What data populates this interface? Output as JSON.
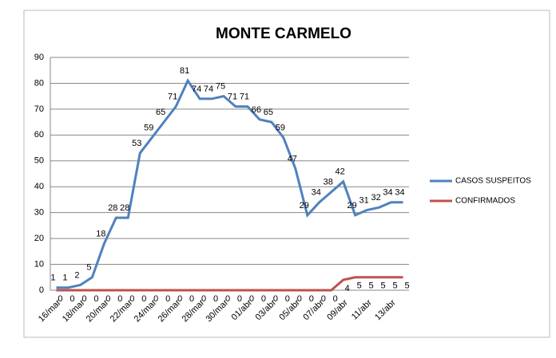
{
  "chart_data": {
    "type": "line",
    "title": "MONTE CARMELO",
    "categories": [
      "16/mar",
      null,
      "18/mar",
      null,
      "20/mar",
      null,
      "22/mar",
      null,
      "24/mar",
      null,
      "26/mar",
      null,
      "28/mar",
      null,
      "30/mar",
      null,
      "01/abr",
      null,
      "03/abr",
      null,
      "05/abr",
      null,
      "07/abr",
      null,
      "09/abr",
      null,
      "11/abr",
      null,
      "13/abr",
      null
    ],
    "series": [
      {
        "name": "CASOS SUSPEITOS",
        "color": "#4f81bd",
        "values": [
          1,
          1,
          2,
          5,
          18,
          28,
          28,
          53,
          59,
          65,
          71,
          81,
          74,
          74,
          75,
          71,
          71,
          66,
          65,
          59,
          47,
          29,
          34,
          38,
          42,
          29,
          31,
          32,
          34,
          34
        ]
      },
      {
        "name": "CONFIRMADOS",
        "color": "#c0504d",
        "values": [
          0,
          0,
          0,
          0,
          0,
          0,
          0,
          0,
          0,
          0,
          0,
          0,
          0,
          0,
          0,
          0,
          0,
          0,
          0,
          0,
          0,
          0,
          0,
          0,
          4,
          5,
          5,
          5,
          5,
          5
        ]
      }
    ],
    "ylim": [
      0,
      90
    ],
    "yticks": [
      0,
      10,
      20,
      30,
      40,
      50,
      60,
      70,
      80,
      90
    ],
    "grid": true,
    "legend": "right"
  }
}
